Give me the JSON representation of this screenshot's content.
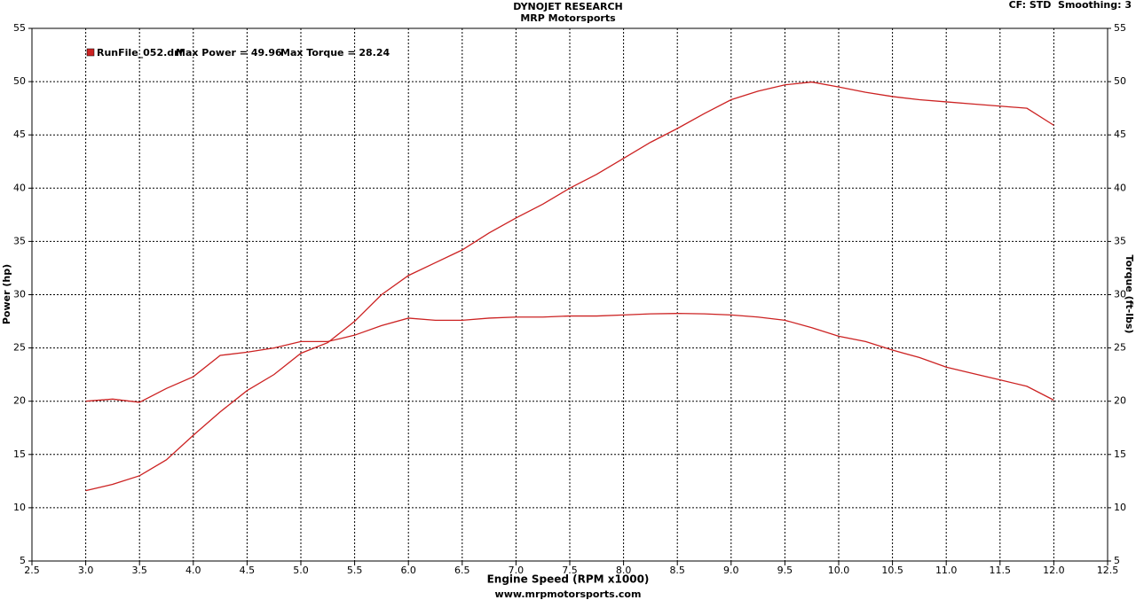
{
  "chart_data": {
    "type": "line",
    "title": "DYNOJET RESEARCH",
    "subtitle": "MRP Motorsports",
    "corner_text": "CF: STD  Smoothing: 3",
    "footer": "www.mrpmotorsports.com",
    "x_label": "Engine Speed (RPM x1000)",
    "y_label": "Power (hp)",
    "y2_label": "Torque (ft-lbs)",
    "annotations": [
      "Max Power = 49.96",
      "Max Torque = 28.24"
    ],
    "grid": true,
    "x": [
      3.0,
      3.25,
      3.5,
      3.75,
      4.0,
      4.25,
      4.5,
      4.75,
      5.0,
      5.25,
      5.5,
      5.75,
      6.0,
      6.25,
      6.5,
      6.75,
      7.0,
      7.25,
      7.5,
      7.75,
      8.0,
      8.25,
      8.5,
      8.75,
      9.0,
      9.25,
      9.5,
      9.75,
      10.0,
      10.25,
      10.5,
      10.75,
      11.0,
      11.25,
      11.5,
      11.75,
      12.0
    ],
    "series": [
      {
        "name": "RunFile_052.drf",
        "color": "#cc2222",
        "values": [
          11.6,
          12.2,
          13.0,
          14.5,
          16.8,
          19.0,
          21.0,
          22.5,
          24.5,
          25.5,
          27.5,
          30.0,
          31.8,
          33.0,
          34.2,
          35.8,
          37.2,
          38.5,
          40.0,
          41.3,
          42.8,
          44.3,
          45.6,
          47.0,
          48.3,
          49.1,
          49.7,
          49.96,
          49.5,
          49.0,
          48.6,
          48.3,
          48.1,
          47.9,
          47.7,
          47.5,
          45.9
        ]
      },
      {
        "color": "#cc2222",
        "axis": "y2",
        "values": [
          20.0,
          20.2,
          19.9,
          21.2,
          22.3,
          24.3,
          24.6,
          25.0,
          25.6,
          25.6,
          26.2,
          27.1,
          27.8,
          27.6,
          27.6,
          27.8,
          27.9,
          27.9,
          28.0,
          28.0,
          28.1,
          28.2,
          28.24,
          28.2,
          28.1,
          27.9,
          27.6,
          26.9,
          26.1,
          25.6,
          24.8,
          24.1,
          23.2,
          22.6,
          22.0,
          21.4,
          20.1
        ]
      }
    ],
    "xlim": [
      2.5,
      12.5
    ],
    "xticks": [
      2.5,
      {
        "value": 3,
        "label": "3.0"
      },
      3.5,
      {
        "value": 4,
        "label": "4.0"
      },
      4.5,
      {
        "value": 5,
        "label": "5.0"
      },
      5.5,
      {
        "value": 6,
        "label": "6.0"
      },
      6.5,
      {
        "value": 7,
        "label": "7.0"
      },
      7.5,
      {
        "value": 8,
        "label": "8.0"
      },
      8.5,
      {
        "value": 9,
        "label": "9.0"
      },
      9.5,
      {
        "value": 10,
        "label": "10.0"
      },
      10.5,
      {
        "value": 11,
        "label": "11.0"
      },
      11.5,
      {
        "value": 12,
        "label": "12.0"
      },
      12.5
    ],
    "ylim": [
      5,
      55
    ],
    "yticks": [
      5,
      10,
      15,
      20,
      25,
      30,
      35,
      40,
      45,
      50,
      55
    ],
    "y2lim": [
      5,
      55
    ],
    "y2ticks": [
      5,
      10,
      15,
      20,
      25,
      30,
      35,
      40,
      45,
      50,
      55
    ]
  }
}
